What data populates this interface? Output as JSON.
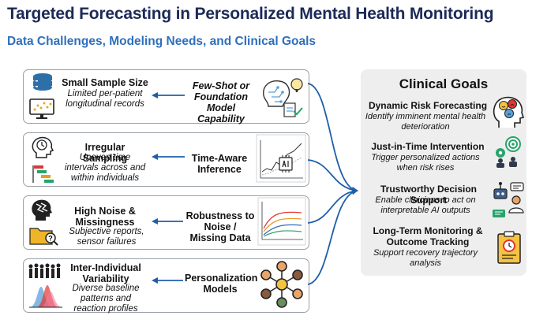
{
  "header": {
    "title": "Targeted Forecasting in Personalized Mental Health Monitoring",
    "subtitle": "Data Challenges, Modeling Needs, and Clinical Goals"
  },
  "rows": [
    {
      "challenge_title": "Small Sample Size",
      "challenge_desc": "Limited per-patient longitudinal records",
      "need": "Few-Shot or Foundation Model Capability"
    },
    {
      "challenge_title": "Irregular Sampling",
      "challenge_desc": "Uneven time intervals across and within individuals",
      "need": "Time-Aware Inference"
    },
    {
      "challenge_title": "High Noise & Missingness",
      "challenge_desc": "Subjective reports, sensor failures",
      "need": "Robustness to Noise / Missing Data"
    },
    {
      "challenge_title": "Inter-Individual Variability",
      "challenge_desc": "Diverse baseline patterns and reaction profiles",
      "need": "Personalization Models"
    }
  ],
  "goals": {
    "title": "Clinical Goals",
    "items": [
      {
        "title": "Dynamic Risk Forecasting",
        "desc": "Identify imminent mental health deterioration"
      },
      {
        "title": "Just-in-Time Intervention",
        "desc": "Trigger personalized actions when risk rises"
      },
      {
        "title": "Trustworthy Decision Support",
        "desc": "Enable clinicians to act on interpretable AI outputs"
      },
      {
        "title": "Long-Term Monitoring & Outcome Tracking",
        "desc": "Support recovery trajectory analysis"
      }
    ]
  },
  "colors": {
    "title": "#1c2a57",
    "subtitle": "#2f6fba",
    "arrow": "#1f5ea8",
    "panel": "#eeeeee"
  },
  "icons": [
    "database-icon",
    "monitor-chart-icon",
    "head-clock-icon",
    "timeline-icon",
    "head-noise-icon",
    "folder-search-icon",
    "crowd-distribution-icon",
    "brain-circuit-icon",
    "line-chart-icon",
    "noise-curves-icon",
    "network-icon",
    "head-emotions-icon",
    "target-people-icon",
    "robot-clinician-icon",
    "clipboard-clock-icon"
  ]
}
